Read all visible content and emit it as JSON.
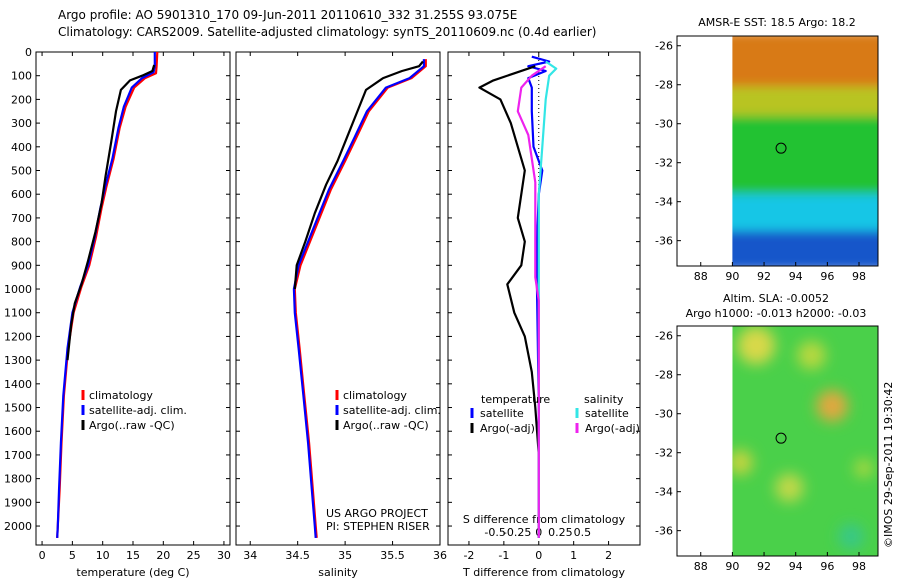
{
  "header": {
    "line1": "Argo profile: AO 5901310_170 09-Jun-2011 20110610_332 31.255S 93.075E",
    "line2": "Climatology: CARS2009. Satellite-adjusted climatology: synTS_20110609.nc (0.4d earlier)"
  },
  "credit": {
    "line1": "US ARGO PROJECT",
    "line2": "PI: STEPHEN RISER"
  },
  "stamp": "©IMOS 29-Sep-2011 19:30:42",
  "colors": {
    "red": "#ff0000",
    "blue": "#0000ff",
    "black": "#000000",
    "cyan": "#33e6e6",
    "magenta": "#ee22ee"
  },
  "chart_data": [
    {
      "type": "line",
      "id": "temperature",
      "xlabel": "temperature (deg C)",
      "xlim": [
        -1,
        31
      ],
      "ylim": [
        0,
        2080
      ],
      "xticks": [
        0,
        5,
        10,
        15,
        20,
        25,
        30
      ],
      "yticks": [
        0,
        100,
        200,
        300,
        400,
        500,
        600,
        700,
        800,
        900,
        1000,
        1100,
        1200,
        1300,
        1400,
        1500,
        1600,
        1700,
        1800,
        1900,
        2000
      ],
      "legend": [
        "climatology",
        "satellite-adj. clim.",
        "Argo(..raw -QC)"
      ],
      "series": [
        {
          "name": "climatology",
          "color": "red",
          "points": [
            [
              19.0,
              0
            ],
            [
              18.9,
              60
            ],
            [
              18.8,
              90
            ],
            [
              17.0,
              110
            ],
            [
              15.2,
              150
            ],
            [
              13.8,
              230
            ],
            [
              12.8,
              320
            ],
            [
              11.8,
              450
            ],
            [
              10.6,
              570
            ],
            [
              9.8,
              660
            ],
            [
              8.9,
              780
            ],
            [
              7.8,
              900
            ],
            [
              6.5,
              990
            ],
            [
              5.2,
              1100
            ],
            [
              4.3,
              1250
            ],
            [
              3.6,
              1450
            ],
            [
              3.2,
              1650
            ],
            [
              2.9,
              1850
            ],
            [
              2.6,
              2000
            ],
            [
              2.5,
              2050
            ]
          ]
        },
        {
          "name": "satellite-adj. clim.",
          "color": "blue",
          "points": [
            [
              18.6,
              0
            ],
            [
              18.6,
              60
            ],
            [
              18.4,
              85
            ],
            [
              16.5,
              110
            ],
            [
              14.8,
              150
            ],
            [
              13.5,
              230
            ],
            [
              12.6,
              320
            ],
            [
              11.6,
              450
            ],
            [
              10.4,
              570
            ],
            [
              9.6,
              660
            ],
            [
              8.7,
              780
            ],
            [
              7.6,
              900
            ],
            [
              6.3,
              990
            ],
            [
              5.0,
              1100
            ],
            [
              4.2,
              1250
            ],
            [
              3.5,
              1450
            ],
            [
              3.1,
              1650
            ],
            [
              2.8,
              1850
            ],
            [
              2.6,
              2000
            ],
            [
              2.5,
              2050
            ]
          ]
        },
        {
          "name": "Argo(..raw -QC)",
          "color": "black",
          "points": [
            [
              18.5,
              55
            ],
            [
              18.2,
              80
            ],
            [
              16.5,
              100
            ],
            [
              14.5,
              120
            ],
            [
              13.0,
              160
            ],
            [
              12.2,
              250
            ],
            [
              11.4,
              380
            ],
            [
              10.5,
              520
            ],
            [
              9.8,
              640
            ],
            [
              8.8,
              760
            ],
            [
              7.6,
              880
            ],
            [
              6.5,
              980
            ],
            [
              5.4,
              1060
            ],
            [
              4.8,
              1150
            ],
            [
              4.2,
              1300
            ]
          ]
        }
      ]
    },
    {
      "type": "line",
      "id": "salinity",
      "xlabel": "salinity",
      "xlim": [
        33.85,
        36.0
      ],
      "ylim": [
        0,
        2080
      ],
      "xticks": [
        34,
        34.5,
        35,
        35.5,
        36
      ],
      "yticks": [
        0,
        100,
        200,
        300,
        400,
        500,
        600,
        700,
        800,
        900,
        1000,
        1100,
        1200,
        1300,
        1400,
        1500,
        1600,
        1700,
        1800,
        1900,
        2000
      ],
      "legend": [
        "climatology",
        "satellite-adj. clim.",
        "Argo(..raw -QC)"
      ],
      "series": [
        {
          "name": "climatology",
          "color": "red",
          "points": [
            [
              35.85,
              30
            ],
            [
              35.85,
              60
            ],
            [
              35.7,
              110
            ],
            [
              35.45,
              150
            ],
            [
              35.25,
              250
            ],
            [
              35.12,
              360
            ],
            [
              35.0,
              460
            ],
            [
              34.85,
              580
            ],
            [
              34.75,
              680
            ],
            [
              34.63,
              800
            ],
            [
              34.53,
              900
            ],
            [
              34.47,
              1000
            ],
            [
              34.48,
              1100
            ],
            [
              34.52,
              1250
            ],
            [
              34.57,
              1450
            ],
            [
              34.62,
              1650
            ],
            [
              34.66,
              1850
            ],
            [
              34.69,
              2000
            ],
            [
              34.7,
              2050
            ]
          ]
        },
        {
          "name": "satellite-adj. clim.",
          "color": "blue",
          "points": [
            [
              35.83,
              30
            ],
            [
              35.83,
              60
            ],
            [
              35.68,
              110
            ],
            [
              35.43,
              150
            ],
            [
              35.23,
              250
            ],
            [
              35.1,
              360
            ],
            [
              34.98,
              460
            ],
            [
              34.83,
              580
            ],
            [
              34.73,
              680
            ],
            [
              34.61,
              800
            ],
            [
              34.51,
              900
            ],
            [
              34.46,
              1000
            ],
            [
              34.47,
              1100
            ],
            [
              34.51,
              1250
            ],
            [
              34.56,
              1450
            ],
            [
              34.61,
              1650
            ],
            [
              34.65,
              1850
            ],
            [
              34.68,
              2000
            ],
            [
              34.69,
              2050
            ]
          ]
        },
        {
          "name": "Argo(..raw -QC)",
          "color": "black",
          "points": [
            [
              35.82,
              40
            ],
            [
              35.78,
              60
            ],
            [
              35.6,
              80
            ],
            [
              35.4,
              110
            ],
            [
              35.22,
              160
            ],
            [
              35.12,
              260
            ],
            [
              35.02,
              360
            ],
            [
              34.92,
              460
            ],
            [
              34.8,
              560
            ],
            [
              34.68,
              680
            ],
            [
              34.58,
              800
            ],
            [
              34.49,
              900
            ],
            [
              34.47,
              1000
            ]
          ]
        }
      ]
    },
    {
      "type": "line",
      "id": "difference",
      "xlabel": "T difference from climatology",
      "xlabel_top": "S difference from climatology",
      "xlim": [
        -2.6,
        2.9
      ],
      "ylim": [
        0,
        2080
      ],
      "xticks": [
        -2,
        -1,
        0,
        1,
        2
      ],
      "xticks_top": [
        "-0.5",
        "-0.25",
        "0",
        "0.25",
        "0.5"
      ],
      "yticks": [
        0,
        100,
        200,
        300,
        400,
        500,
        600,
        700,
        800,
        900,
        1000,
        1100,
        1200,
        1300,
        1400,
        1500,
        1600,
        1700,
        1800,
        1900,
        2000
      ],
      "legend_headers": [
        "temperature",
        "salinity"
      ],
      "legend": [
        "satellite",
        "Argo(-adj)",
        "satellite",
        "Argo(-adj)"
      ],
      "series": [
        {
          "name": "temperature satellite",
          "color": "blue",
          "points": [
            [
              -0.2,
              20
            ],
            [
              0.3,
              40
            ],
            [
              -0.3,
              60
            ],
            [
              0.2,
              80
            ],
            [
              -0.3,
              110
            ],
            [
              -0.2,
              150
            ],
            [
              -0.2,
              250
            ],
            [
              -0.15,
              400
            ],
            [
              0.1,
              500
            ],
            [
              0.0,
              600
            ],
            [
              -0.05,
              800
            ],
            [
              -0.05,
              1000
            ],
            [
              0.0,
              1500
            ],
            [
              0.0,
              2050
            ]
          ]
        },
        {
          "name": "temperature Argo(-adj)",
          "color": "black",
          "points": [
            [
              -0.1,
              60
            ],
            [
              -0.7,
              90
            ],
            [
              -1.3,
              120
            ],
            [
              -1.7,
              150
            ],
            [
              -1.1,
              200
            ],
            [
              -0.8,
              300
            ],
            [
              -0.6,
              400
            ],
            [
              -0.4,
              500
            ],
            [
              -0.5,
              600
            ],
            [
              -0.6,
              700
            ],
            [
              -0.4,
              800
            ],
            [
              -0.5,
              900
            ],
            [
              -0.9,
              980
            ],
            [
              -0.7,
              1100
            ],
            [
              -0.4,
              1200
            ],
            [
              -0.2,
              1350
            ],
            [
              -0.1,
              1500
            ],
            [
              0.0,
              1700
            ],
            [
              0.0,
              2050
            ]
          ]
        },
        {
          "name": "salinity satellite",
          "color": "cyan",
          "points": [
            [
              0.2,
              40
            ],
            [
              0.5,
              70
            ],
            [
              0.3,
              100
            ],
            [
              0.2,
              200
            ],
            [
              0.1,
              400
            ],
            [
              0.0,
              600
            ],
            [
              0.0,
              1000
            ],
            [
              0.0,
              1500
            ],
            [
              0.0,
              2050
            ]
          ]
        },
        {
          "name": "salinity Argo(-adj)",
          "color": "magenta",
          "points": [
            [
              0.2,
              60
            ],
            [
              -0.2,
              100
            ],
            [
              -0.5,
              150
            ],
            [
              -0.6,
              250
            ],
            [
              -0.3,
              350
            ],
            [
              -0.2,
              450
            ],
            [
              -0.1,
              550
            ],
            [
              -0.1,
              700
            ],
            [
              -0.1,
              850
            ],
            [
              -0.1,
              950
            ],
            [
              0.0,
              1050
            ],
            [
              0.0,
              1200
            ],
            [
              0.0,
              1400
            ],
            [
              0.0,
              1600
            ],
            [
              0.0,
              2050
            ]
          ]
        }
      ]
    },
    {
      "type": "heatmap",
      "id": "sst-map",
      "title": "AMSR-E SST: 18.5 Argo: 18.2",
      "xlim": [
        86.5,
        99.2
      ],
      "ylim": [
        -37.3,
        -25.5
      ],
      "xticks": [
        88,
        90,
        92,
        94,
        96,
        98
      ],
      "yticks": [
        -26,
        -28,
        -30,
        -32,
        -34,
        -36
      ],
      "data_xlim": [
        90,
        99.2
      ],
      "argo_position": [
        93.075,
        -31.255
      ],
      "bands": [
        {
          "from": -25.5,
          "to": -28.3,
          "color": "#d87a12"
        },
        {
          "from": -28.3,
          "to": -29.8,
          "color": "#b8c424"
        },
        {
          "from": -29.8,
          "to": -33.8,
          "color": "#22c232"
        },
        {
          "from": -33.8,
          "to": -35.7,
          "color": "#12c6e6"
        },
        {
          "from": -35.7,
          "to": -37.3,
          "color": "#1456ca"
        }
      ]
    },
    {
      "type": "heatmap",
      "id": "sla-map",
      "title_line1": "Altim. SLA: -0.0052",
      "title_line2": "Argo h1000: -0.013 h2000: -0.03",
      "xlim": [
        86.5,
        99.2
      ],
      "ylim": [
        -37.3,
        -25.5
      ],
      "xticks": [
        88,
        90,
        92,
        94,
        96,
        98
      ],
      "yticks": [
        -26,
        -28,
        -30,
        -32,
        -34,
        -36
      ],
      "data_xlim": [
        90,
        99.2
      ],
      "argo_position": [
        93.075,
        -31.255
      ],
      "base_color": "#4ad04a",
      "blobs": [
        {
          "x": 91.5,
          "y": -26.5,
          "r": 1.2,
          "color": "#d8d848"
        },
        {
          "x": 96.3,
          "y": -29.6,
          "r": 1.0,
          "color": "#e0a840"
        },
        {
          "x": 95.0,
          "y": -27.0,
          "r": 0.9,
          "color": "#b8d840"
        },
        {
          "x": 93.6,
          "y": -33.8,
          "r": 0.9,
          "color": "#c0d84a"
        },
        {
          "x": 90.5,
          "y": -32.5,
          "r": 0.8,
          "color": "#c4d440"
        },
        {
          "x": 97.5,
          "y": -36.3,
          "r": 0.8,
          "color": "#38c888"
        },
        {
          "x": 98.3,
          "y": -32.8,
          "r": 0.6,
          "color": "#a8d840"
        }
      ]
    }
  ]
}
